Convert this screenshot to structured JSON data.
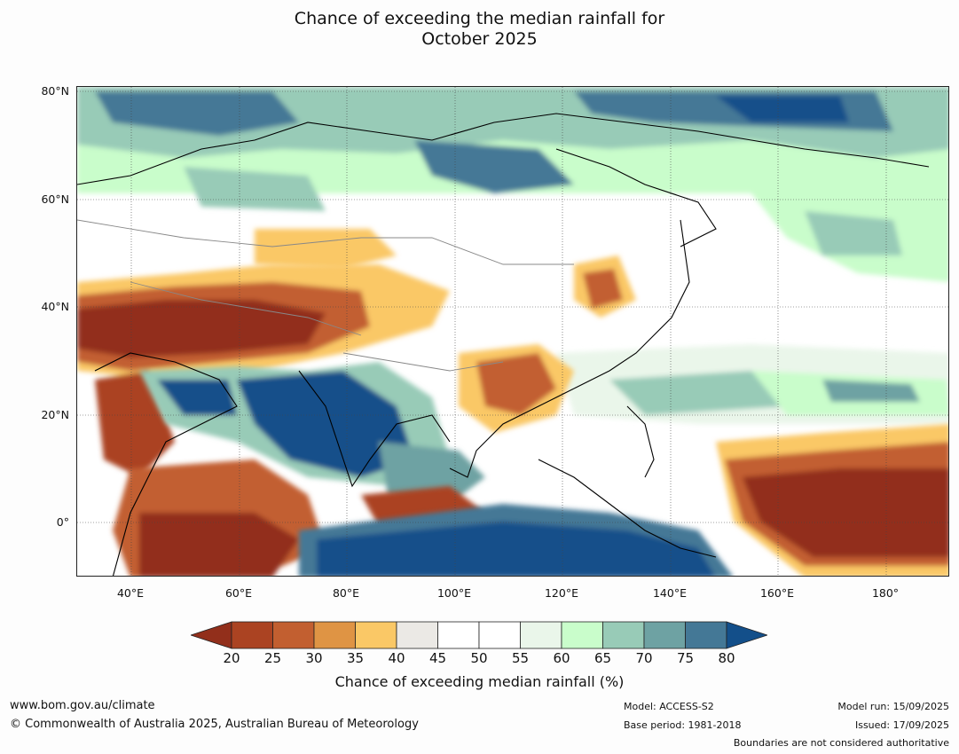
{
  "title": {
    "line1": "Chance of exceeding the median rainfall for",
    "line2": "October 2025"
  },
  "map": {
    "lat_labels": [
      "80°N",
      "60°N",
      "40°N",
      "20°N",
      "0°"
    ],
    "lon_labels": [
      "40°E",
      "60°E",
      "80°E",
      "100°E",
      "120°E",
      "140°E",
      "160°E",
      "180°"
    ],
    "extent": {
      "lon": [
        30,
        192
      ],
      "lat": [
        -10,
        80
      ]
    }
  },
  "colorbar": {
    "ticks": [
      "20",
      "25",
      "30",
      "35",
      "40",
      "45",
      "50",
      "55",
      "60",
      "65",
      "70",
      "75",
      "80"
    ],
    "colors": [
      "#922f1b",
      "#ab4322",
      "#c25f30",
      "#df9444",
      "#fac866",
      "#ebe9e5",
      "#ffffff",
      "#ffffff",
      "#eaf6ea",
      "#c9fdcb",
      "#98cbb7",
      "#6ea2a3",
      "#447896",
      "#134f8a"
    ],
    "label": "Chance of exceeding median rainfall (%)"
  },
  "footer": {
    "url": "www.bom.gov.au/climate",
    "copyright": "© Commonwealth of Australia 2025, Australian Bureau of Meteorology",
    "model": "Model: ACCESS-S2",
    "base_period": "Base period: 1981-2018",
    "model_run": "Model run: 15/09/2025",
    "issued": "Issued: 17/09/2025",
    "disclaimer": "Boundaries are not considered authoritative"
  }
}
